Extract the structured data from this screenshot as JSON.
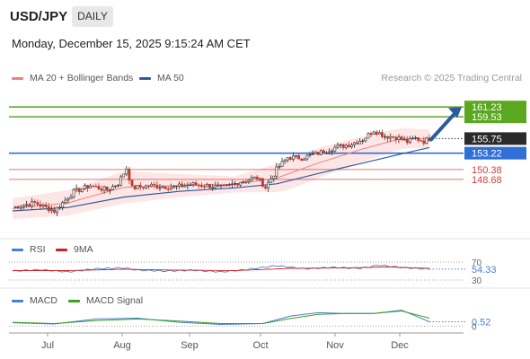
{
  "header": {
    "symbol": "USD/JPY",
    "timeframe": "DAILY",
    "datetime": "Monday, December 15, 2025 9:15:24 AM CET"
  },
  "price_legend": {
    "items": [
      {
        "label": "MA 20 + Bollinger Bands",
        "color": "#f08080"
      },
      {
        "label": "MA 50",
        "color": "#2c5aa0"
      }
    ],
    "credit": "Research © 2025 Trading Central"
  },
  "rsi_legend": {
    "items": [
      {
        "label": "RSI",
        "color": "#4a7fd4"
      },
      {
        "label": "9MA",
        "color": "#d21f1f"
      }
    ]
  },
  "macd_legend": {
    "items": [
      {
        "label": "MACD",
        "color": "#4a7fd4"
      },
      {
        "label": "MACD Signal",
        "color": "#3aa020"
      }
    ]
  },
  "chart_data": [
    {
      "type": "candlestick",
      "title": "USD/JPY DAILY",
      "x_months": [
        "Jul",
        "Aug",
        "Sep",
        "Oct",
        "Nov",
        "Dec"
      ],
      "ylim": [
        139,
        165
      ],
      "last_price": 155.75,
      "key_levels": [
        {
          "value": 161.23,
          "label": "161.23",
          "kind": "resistance",
          "color": "#5aa820"
        },
        {
          "value": 159.53,
          "label": "159.53",
          "kind": "resistance",
          "color": "#5aa820"
        },
        {
          "value": 153.22,
          "label": "153.22",
          "kind": "pivot",
          "color": "#2f6fd6"
        },
        {
          "value": 150.38,
          "label": "150.38",
          "kind": "support",
          "color": "#d93a3a"
        },
        {
          "value": 148.68,
          "label": "148.68",
          "kind": "support",
          "color": "#d93a3a"
        }
      ],
      "close_path": [
        {
          "i": 0,
          "c": 143.8
        },
        {
          "i": 8,
          "c": 144.6
        },
        {
          "i": 15,
          "c": 143.2
        },
        {
          "i": 22,
          "c": 146.5
        },
        {
          "i": 28,
          "c": 147.6
        },
        {
          "i": 34,
          "c": 146.8
        },
        {
          "i": 38,
          "c": 148.0
        },
        {
          "i": 41,
          "c": 150.6
        },
        {
          "i": 43,
          "c": 147.2
        },
        {
          "i": 50,
          "c": 147.6
        },
        {
          "i": 58,
          "c": 147.3
        },
        {
          "i": 64,
          "c": 147.8
        },
        {
          "i": 70,
          "c": 147.6
        },
        {
          "i": 76,
          "c": 147.2
        },
        {
          "i": 82,
          "c": 148.3
        },
        {
          "i": 88,
          "c": 149.0
        },
        {
          "i": 91,
          "c": 147.3
        },
        {
          "i": 95,
          "c": 150.4
        },
        {
          "i": 99,
          "c": 152.5
        },
        {
          "i": 104,
          "c": 152.4
        },
        {
          "i": 110,
          "c": 153.2
        },
        {
          "i": 116,
          "c": 154.2
        },
        {
          "i": 121,
          "c": 154.7
        },
        {
          "i": 126,
          "c": 155.6
        },
        {
          "i": 130,
          "c": 157.2
        },
        {
          "i": 134,
          "c": 156.2
        },
        {
          "i": 138,
          "c": 156.0
        },
        {
          "i": 142,
          "c": 155.2
        },
        {
          "i": 145,
          "c": 155.8
        },
        {
          "i": 148,
          "c": 155.3
        },
        {
          "i": 150,
          "c": 155.75
        }
      ],
      "ma20_path": [
        {
          "i": 0,
          "v": 143.6
        },
        {
          "i": 20,
          "v": 144.6
        },
        {
          "i": 40,
          "v": 147.3
        },
        {
          "i": 60,
          "v": 147.6
        },
        {
          "i": 80,
          "v": 147.8
        },
        {
          "i": 95,
          "v": 148.9
        },
        {
          "i": 110,
          "v": 151.5
        },
        {
          "i": 125,
          "v": 153.8
        },
        {
          "i": 140,
          "v": 155.8
        },
        {
          "i": 150,
          "v": 155.7
        }
      ],
      "ma50_path": [
        {
          "i": 0,
          "v": 143.2
        },
        {
          "i": 20,
          "v": 143.8
        },
        {
          "i": 40,
          "v": 145.6
        },
        {
          "i": 60,
          "v": 146.6
        },
        {
          "i": 80,
          "v": 147.2
        },
        {
          "i": 95,
          "v": 147.9
        },
        {
          "i": 110,
          "v": 149.7
        },
        {
          "i": 125,
          "v": 151.4
        },
        {
          "i": 140,
          "v": 153.1
        },
        {
          "i": 150,
          "v": 154.2
        }
      ],
      "bb_width_path": [
        {
          "i": 0,
          "w": 1.8
        },
        {
          "i": 20,
          "w": 2.2
        },
        {
          "i": 40,
          "w": 2.8
        },
        {
          "i": 60,
          "w": 2.0
        },
        {
          "i": 80,
          "w": 1.4
        },
        {
          "i": 100,
          "w": 2.8
        },
        {
          "i": 120,
          "w": 2.4
        },
        {
          "i": 140,
          "w": 1.8
        },
        {
          "i": 150,
          "w": 1.6
        }
      ],
      "forecast_arrow": {
        "from": 155.6,
        "to": 161.2
      }
    },
    {
      "type": "line",
      "title": "RSI",
      "ylim": [
        30,
        70
      ],
      "ticks": [
        70,
        30
      ],
      "value_label": "54.33",
      "series": [
        {
          "name": "RSI",
          "points": [
            {
              "i": 0,
              "v": 50
            },
            {
              "i": 10,
              "v": 53
            },
            {
              "i": 20,
              "v": 48
            },
            {
              "i": 30,
              "v": 55
            },
            {
              "i": 40,
              "v": 57
            },
            {
              "i": 45,
              "v": 52
            },
            {
              "i": 55,
              "v": 50
            },
            {
              "i": 65,
              "v": 52
            },
            {
              "i": 75,
              "v": 48
            },
            {
              "i": 85,
              "v": 54
            },
            {
              "i": 95,
              "v": 62
            },
            {
              "i": 105,
              "v": 55
            },
            {
              "i": 115,
              "v": 58
            },
            {
              "i": 125,
              "v": 56
            },
            {
              "i": 132,
              "v": 63
            },
            {
              "i": 140,
              "v": 58
            },
            {
              "i": 150,
              "v": 54.33
            }
          ]
        },
        {
          "name": "9MA",
          "points": [
            {
              "i": 0,
              "v": 51
            },
            {
              "i": 20,
              "v": 51
            },
            {
              "i": 40,
              "v": 54
            },
            {
              "i": 60,
              "v": 52
            },
            {
              "i": 80,
              "v": 51
            },
            {
              "i": 100,
              "v": 56
            },
            {
              "i": 120,
              "v": 57
            },
            {
              "i": 135,
              "v": 59
            },
            {
              "i": 150,
              "v": 56
            }
          ]
        }
      ]
    },
    {
      "type": "line",
      "title": "MACD",
      "ylim": [
        -0.5,
        2.5
      ],
      "ticks": [
        0
      ],
      "value_label": "0.52",
      "series": [
        {
          "name": "MACD",
          "points": [
            {
              "i": 0,
              "v": 0.4
            },
            {
              "i": 15,
              "v": 0.25
            },
            {
              "i": 30,
              "v": 0.85
            },
            {
              "i": 45,
              "v": 0.95
            },
            {
              "i": 60,
              "v": 0.45
            },
            {
              "i": 75,
              "v": 0.2
            },
            {
              "i": 90,
              "v": 0.3
            },
            {
              "i": 100,
              "v": 1.2
            },
            {
              "i": 110,
              "v": 1.6
            },
            {
              "i": 120,
              "v": 1.5
            },
            {
              "i": 130,
              "v": 1.5
            },
            {
              "i": 140,
              "v": 1.9
            },
            {
              "i": 150,
              "v": 0.52
            }
          ]
        },
        {
          "name": "MACD Signal",
          "points": [
            {
              "i": 0,
              "v": 0.45
            },
            {
              "i": 15,
              "v": 0.3
            },
            {
              "i": 30,
              "v": 0.65
            },
            {
              "i": 45,
              "v": 0.85
            },
            {
              "i": 60,
              "v": 0.6
            },
            {
              "i": 75,
              "v": 0.3
            },
            {
              "i": 90,
              "v": 0.3
            },
            {
              "i": 100,
              "v": 0.9
            },
            {
              "i": 110,
              "v": 1.4
            },
            {
              "i": 120,
              "v": 1.5
            },
            {
              "i": 130,
              "v": 1.5
            },
            {
              "i": 140,
              "v": 1.8
            },
            {
              "i": 150,
              "v": 0.95
            }
          ]
        }
      ]
    }
  ]
}
